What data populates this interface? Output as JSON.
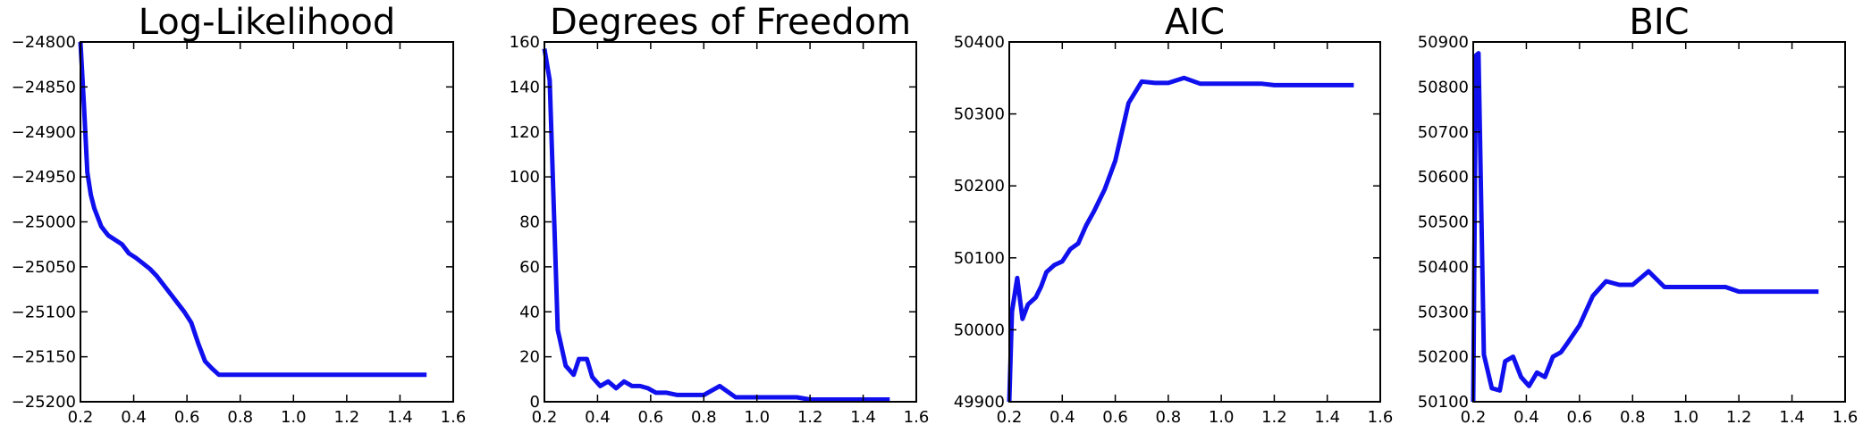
{
  "chart_data": [
    {
      "type": "line",
      "title": "Log-Likelihood",
      "xlim": [
        0.2,
        1.6
      ],
      "ylim": [
        -25200,
        -24800
      ],
      "xticks": [
        0.2,
        0.4,
        0.6,
        0.8,
        1.0,
        1.2,
        1.4,
        1.6
      ],
      "xtick_labels": [
        "0.2",
        "0.4",
        "0.6",
        "0.8",
        "1.0",
        "1.2",
        "1.4",
        "1.6"
      ],
      "yticks": [
        -25200,
        -25150,
        -25100,
        -25050,
        -25000,
        -24950,
        -24900,
        -24850,
        -24800
      ],
      "ytick_labels": [
        "−25200",
        "−25150",
        "−25100",
        "−25050",
        "−25000",
        "−24950",
        "−24900",
        "−24850",
        "−24800"
      ],
      "grid": false,
      "series": [
        {
          "color": "#1010ee",
          "x": [
            0.2,
            0.213,
            0.226,
            0.239,
            0.252,
            0.265,
            0.278,
            0.291,
            0.304,
            0.33,
            0.356,
            0.382,
            0.408,
            0.434,
            0.46,
            0.486,
            0.512,
            0.538,
            0.564,
            0.59,
            0.616,
            0.642,
            0.668,
            0.694,
            0.72,
            0.85,
            1.0,
            1.15,
            1.3,
            1.5
          ],
          "y": [
            -24800,
            -24870,
            -24945,
            -24970,
            -24985,
            -24995,
            -25005,
            -25010,
            -25015,
            -25020,
            -25025,
            -25035,
            -25040,
            -25046,
            -25052,
            -25060,
            -25070,
            -25080,
            -25090,
            -25100,
            -25112,
            -25135,
            -25155,
            -25163,
            -25170,
            -25170,
            -25170,
            -25170,
            -25170,
            -25170
          ]
        }
      ]
    },
    {
      "type": "line",
      "title": "Degrees of Freedom",
      "xlim": [
        0.2,
        1.6
      ],
      "ylim": [
        0,
        160
      ],
      "xticks": [
        0.2,
        0.4,
        0.6,
        0.8,
        1.0,
        1.2,
        1.4,
        1.6
      ],
      "xtick_labels": [
        "0.2",
        "0.4",
        "0.6",
        "0.8",
        "1.0",
        "1.2",
        "1.4",
        "1.6"
      ],
      "yticks": [
        0,
        20,
        40,
        60,
        80,
        100,
        120,
        140,
        160
      ],
      "ytick_labels": [
        "0",
        "20",
        "40",
        "60",
        "80",
        "100",
        "120",
        "140",
        "160"
      ],
      "grid": false,
      "series": [
        {
          "color": "#1010ee",
          "x": [
            0.2,
            0.22,
            0.25,
            0.28,
            0.31,
            0.33,
            0.36,
            0.38,
            0.41,
            0.44,
            0.47,
            0.5,
            0.53,
            0.56,
            0.59,
            0.62,
            0.66,
            0.7,
            0.73,
            0.77,
            0.8,
            0.86,
            0.92,
            1.0,
            1.1,
            1.15,
            1.2,
            1.3,
            1.4,
            1.5
          ],
          "y": [
            157,
            143,
            32,
            16,
            12,
            19,
            19,
            11,
            7,
            9,
            6,
            9,
            7,
            7,
            6,
            4,
            4,
            3,
            3,
            3,
            3,
            7,
            2,
            2,
            2,
            2,
            1,
            1,
            1,
            1
          ]
        }
      ]
    },
    {
      "type": "line",
      "title": "AIC",
      "xlim": [
        0.2,
        1.6
      ],
      "ylim": [
        49900,
        50400
      ],
      "xticks": [
        0.2,
        0.4,
        0.6,
        0.8,
        1.0,
        1.2,
        1.4,
        1.6
      ],
      "xtick_labels": [
        "0.2",
        "0.4",
        "0.6",
        "0.8",
        "1.0",
        "1.2",
        "1.4",
        "1.6"
      ],
      "yticks": [
        49900,
        50000,
        50100,
        50200,
        50300,
        50400
      ],
      "ytick_labels": [
        "49900",
        "50000",
        "50100",
        "50200",
        "50300",
        "50400"
      ],
      "grid": false,
      "series": [
        {
          "color": "#1010ee",
          "x": [
            0.2,
            0.21,
            0.23,
            0.25,
            0.27,
            0.3,
            0.32,
            0.34,
            0.37,
            0.4,
            0.43,
            0.46,
            0.49,
            0.52,
            0.56,
            0.6,
            0.65,
            0.7,
            0.75,
            0.8,
            0.86,
            0.92,
            1.0,
            1.1,
            1.15,
            1.2,
            1.3,
            1.4,
            1.5
          ],
          "y": [
            49900,
            50025,
            50072,
            50015,
            50035,
            50045,
            50060,
            50080,
            50090,
            50095,
            50112,
            50120,
            50145,
            50165,
            50195,
            50235,
            50315,
            50345,
            50343,
            50343,
            50350,
            50342,
            50342,
            50342,
            50342,
            50340,
            50340,
            50340,
            50340
          ]
        }
      ]
    },
    {
      "type": "line",
      "title": "BIC",
      "xlim": [
        0.2,
        1.6
      ],
      "ylim": [
        50100,
        50900
      ],
      "xticks": [
        0.2,
        0.4,
        0.6,
        0.8,
        1.0,
        1.2,
        1.4,
        1.6
      ],
      "xtick_labels": [
        "0.2",
        "0.4",
        "0.6",
        "0.8",
        "1.0",
        "1.2",
        "1.4",
        "1.6"
      ],
      "yticks": [
        50100,
        50200,
        50300,
        50400,
        50500,
        50600,
        50700,
        50800,
        50900
      ],
      "ytick_labels": [
        "50100",
        "50200",
        "50300",
        "50400",
        "50500",
        "50600",
        "50700",
        "50800",
        "50900"
      ],
      "grid": false,
      "series": [
        {
          "color": "#1010ee",
          "x": [
            0.2,
            0.21,
            0.22,
            0.24,
            0.27,
            0.3,
            0.32,
            0.35,
            0.38,
            0.41,
            0.44,
            0.47,
            0.5,
            0.53,
            0.56,
            0.6,
            0.65,
            0.7,
            0.75,
            0.8,
            0.86,
            0.92,
            1.0,
            1.1,
            1.15,
            1.2,
            1.3,
            1.4,
            1.5
          ],
          "y": [
            50100,
            50870,
            50875,
            50205,
            50130,
            50125,
            50190,
            50200,
            50155,
            50135,
            50165,
            50155,
            50200,
            50210,
            50235,
            50270,
            50335,
            50368,
            50360,
            50360,
            50390,
            50355,
            50355,
            50355,
            50355,
            50345,
            50345,
            50345,
            50345
          ]
        }
      ]
    }
  ]
}
